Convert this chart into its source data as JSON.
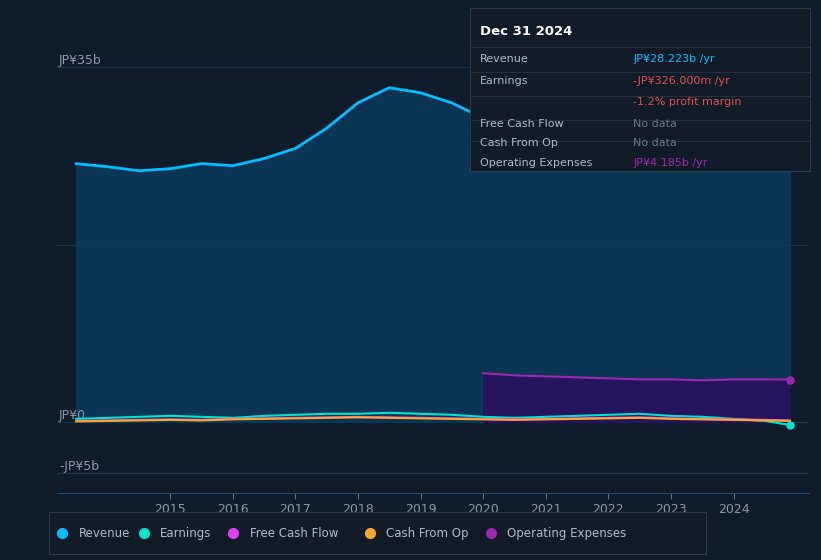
{
  "background_color": "#0d1b2a",
  "plot_bg_color": "#0d1b2a",
  "ylabel_top": "JP¥35b",
  "ylabel_zero": "JP¥0",
  "ylabel_neg": "-JP¥5b",
  "years": [
    2013.5,
    2014,
    2014.5,
    2015,
    2015.5,
    2016,
    2016.5,
    2017,
    2017.5,
    2018,
    2018.5,
    2019,
    2019.5,
    2020,
    2020.5,
    2021,
    2021.5,
    2022,
    2022.5,
    2023,
    2023.5,
    2024,
    2024.5,
    2024.9
  ],
  "revenue": [
    25.5,
    25.2,
    24.8,
    25.0,
    25.5,
    25.3,
    26.0,
    27.0,
    29.0,
    31.5,
    33.0,
    32.5,
    31.5,
    30.0,
    28.5,
    27.0,
    27.5,
    28.0,
    28.0,
    27.5,
    27.0,
    26.5,
    27.5,
    28.2
  ],
  "earnings": [
    0.3,
    0.4,
    0.5,
    0.6,
    0.5,
    0.4,
    0.6,
    0.7,
    0.8,
    0.8,
    0.9,
    0.8,
    0.7,
    0.5,
    0.4,
    0.5,
    0.6,
    0.7,
    0.8,
    0.6,
    0.5,
    0.3,
    0.1,
    -0.3
  ],
  "free_cash_flow": [
    0.1,
    0.15,
    0.2,
    0.25,
    0.2,
    0.3,
    0.35,
    0.4,
    0.45,
    0.5,
    0.45,
    0.4,
    0.35,
    0.3,
    0.25,
    0.3,
    0.35,
    0.4,
    0.45,
    0.35,
    0.3,
    0.25,
    0.2,
    0.15
  ],
  "cash_from_op": [
    0.05,
    0.1,
    0.15,
    0.2,
    0.15,
    0.25,
    0.3,
    0.35,
    0.4,
    0.45,
    0.4,
    0.35,
    0.3,
    0.25,
    0.2,
    0.25,
    0.3,
    0.35,
    0.4,
    0.3,
    0.25,
    0.2,
    0.15,
    0.1
  ],
  "op_expenses_x": [
    2020,
    2020.5,
    2021,
    2021.5,
    2022,
    2022.5,
    2023,
    2023.5,
    2024,
    2024.5,
    2024.9
  ],
  "op_expenses": [
    4.8,
    4.6,
    4.5,
    4.4,
    4.3,
    4.2,
    4.2,
    4.1,
    4.2,
    4.2,
    4.185
  ],
  "revenue_color": "#00bfff",
  "revenue_fill_color": "#0a3a5c",
  "earnings_color": "#00e5cc",
  "free_cash_flow_color": "#e040fb",
  "cash_from_op_color": "#ffa726",
  "op_expenses_color": "#9c27b0",
  "op_expenses_fill_color": "#2a1060",
  "ylim_min": -7,
  "ylim_max": 40,
  "xlim_min": 2013.2,
  "xlim_max": 2025.2,
  "grid_color": "#1e3a50",
  "tooltip_bg": "#111b27",
  "tooltip_border": "#2a3a4a",
  "legend_bg": "#111b27",
  "legend_border": "#2a3a4a",
  "xtick_positions": [
    2015,
    2016,
    2017,
    2018,
    2019,
    2020,
    2021,
    2022,
    2023,
    2024
  ]
}
